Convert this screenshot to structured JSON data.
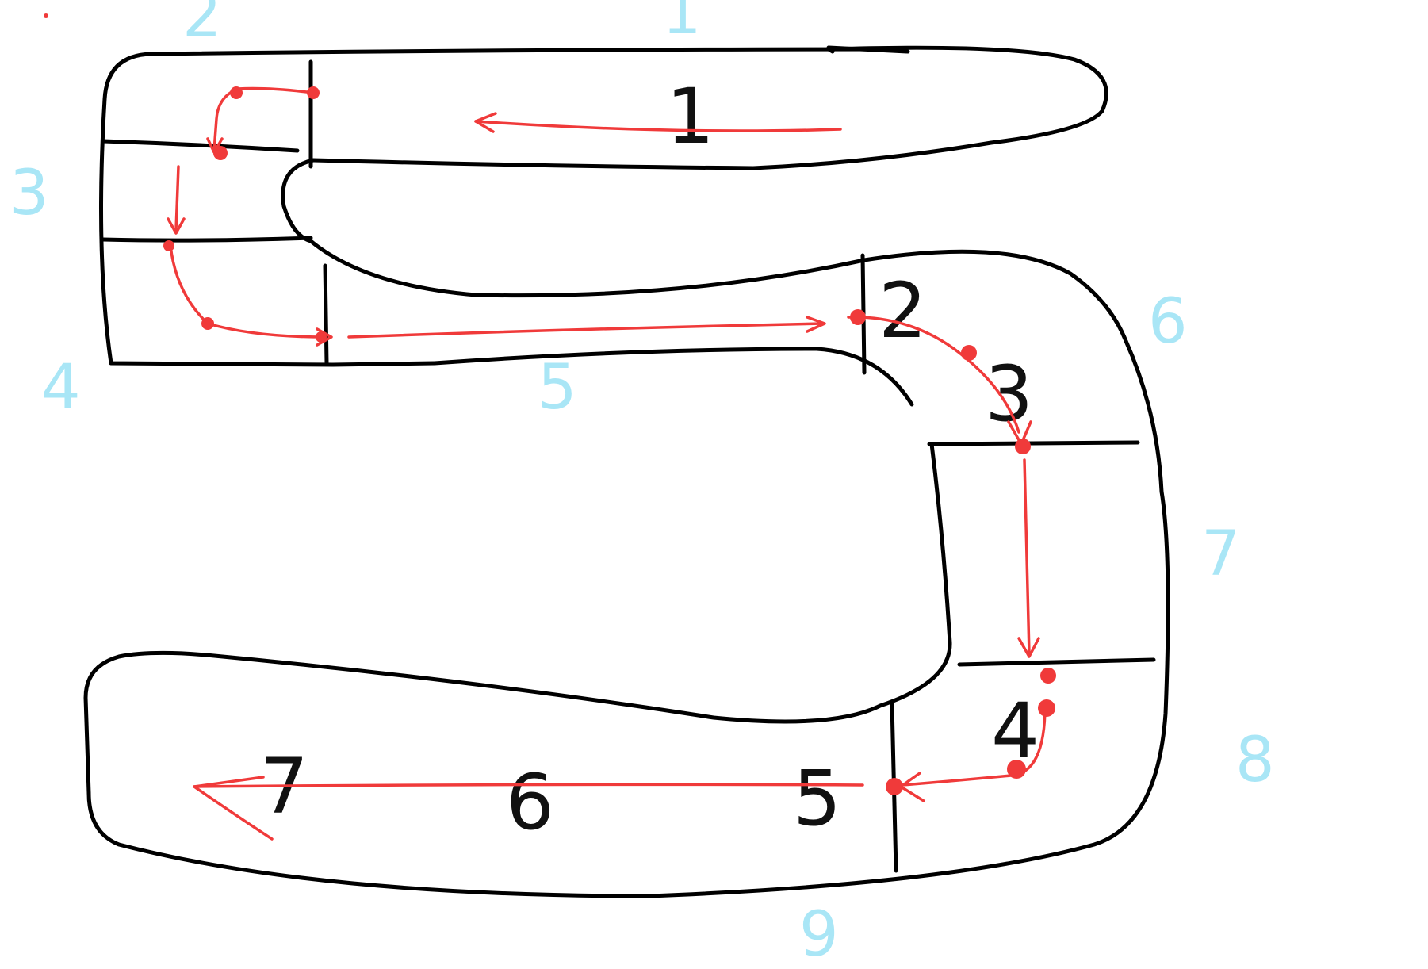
{
  "diagram": {
    "description_type": "hand-drawn-track",
    "segment_labels": [
      "1",
      "2",
      "3",
      "4",
      "5",
      "6",
      "7"
    ],
    "zone_labels": [
      "1",
      "2",
      "3",
      "4",
      "5",
      "6",
      "7",
      "8",
      "9"
    ],
    "colors": {
      "ink": "#000000",
      "path": "#f03a3a",
      "zone": "#a9e6f6"
    }
  }
}
